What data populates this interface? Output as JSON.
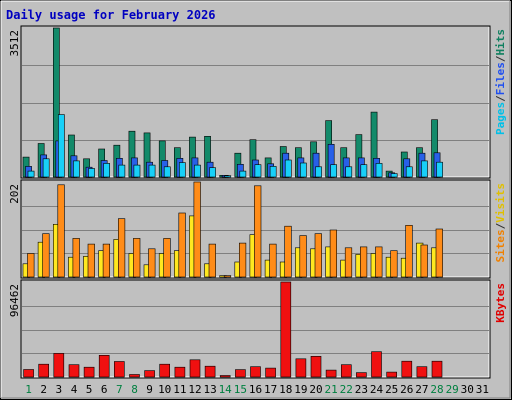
{
  "chart_data": {
    "type": "bar",
    "title": "Daily usage for February 2026",
    "days": [
      "1",
      "2",
      "3",
      "4",
      "5",
      "6",
      "7",
      "8",
      "9",
      "10",
      "11",
      "12",
      "13",
      "14",
      "15",
      "16",
      "17",
      "18",
      "19",
      "20",
      "21",
      "22",
      "23",
      "24",
      "25",
      "26",
      "27",
      "28",
      "29",
      "30",
      "31"
    ],
    "weekend_days": [
      "1",
      "7",
      "8",
      "14",
      "15",
      "21",
      "22",
      "28",
      "29"
    ],
    "panels": [
      {
        "name": "top",
        "ymax_label": "3512",
        "ymax": 3512,
        "legend": [
          {
            "text": "Pages",
            "color": "#00c0e8"
          },
          {
            "text": "/",
            "color": "#303030"
          },
          {
            "text": "Files",
            "color": "#2050f0"
          },
          {
            "text": "/",
            "color": "#303030"
          },
          {
            "text": "Hits",
            "color": "#108060"
          }
        ],
        "series": [
          {
            "name": "Hits",
            "color": "#138a6a",
            "values": [
              470,
              790,
              3512,
              990,
              430,
              660,
              750,
              1080,
              1040,
              850,
              690,
              940,
              960,
              40,
              560,
              880,
              450,
              720,
              690,
              830,
              1330,
              690,
              1000,
              1530,
              140,
              590,
              690,
              1350,
              0,
              0,
              0
            ]
          },
          {
            "name": "Files",
            "color": "#2860e8",
            "values": [
              250,
              520,
              850,
              500,
              230,
              390,
              440,
              450,
              350,
              390,
              440,
              450,
              350,
              40,
              300,
              400,
              310,
              560,
              450,
              560,
              770,
              450,
              450,
              440,
              100,
              430,
              560,
              570,
              0,
              0,
              0
            ]
          },
          {
            "name": "Pages",
            "color": "#18d0f8",
            "values": [
              140,
              430,
              1470,
              380,
              200,
              320,
              280,
              280,
              280,
              240,
              340,
              280,
              220,
              30,
              140,
              290,
              250,
              400,
              330,
              240,
              290,
              240,
              290,
              320,
              80,
              240,
              380,
              350,
              0,
              0,
              0
            ]
          }
        ]
      },
      {
        "name": "middle",
        "ymax_label": "202",
        "ymax": 202,
        "legend": [
          {
            "text": "Sites",
            "color": "#f08000"
          },
          {
            "text": "/",
            "color": "#303030"
          },
          {
            "text": "Visits",
            "color": "#e0c000"
          }
        ],
        "series": [
          {
            "name": "Visits",
            "color": "#ffe820",
            "values": [
              28,
              74,
              112,
              42,
              44,
              56,
              80,
              50,
              26,
              50,
              56,
              130,
              28,
              3,
              32,
              90,
              36,
              32,
              62,
              60,
              64,
              36,
              48,
              50,
              42,
              40,
              72,
              62,
              0,
              0,
              0
            ]
          },
          {
            "name": "Sites",
            "color": "#ff8c18",
            "values": [
              50,
              92,
              196,
              82,
              70,
              70,
              124,
              82,
              60,
              82,
              136,
              202,
              70,
              3,
              72,
              194,
              70,
              108,
              88,
              92,
              100,
              62,
              64,
              64,
              56,
              110,
              68,
              102,
              0,
              0,
              0
            ]
          }
        ]
      },
      {
        "name": "bottom",
        "ymax_label": "96462",
        "ymax": 96462,
        "legend": [
          {
            "text": "KBytes",
            "color": "#e00000"
          }
        ],
        "series": [
          {
            "name": "KBytes",
            "color": "#f01010",
            "values": [
              7600,
              13000,
              24000,
              12500,
              10000,
              22000,
              15700,
              2500,
              6500,
              13000,
              10000,
              17500,
              11000,
              1500,
              7500,
              10500,
              9000,
              96462,
              18500,
              21000,
              7000,
              12500,
              4500,
              25700,
              5000,
              16000,
              10500,
              16000,
              0,
              0,
              0
            ]
          }
        ]
      }
    ]
  }
}
